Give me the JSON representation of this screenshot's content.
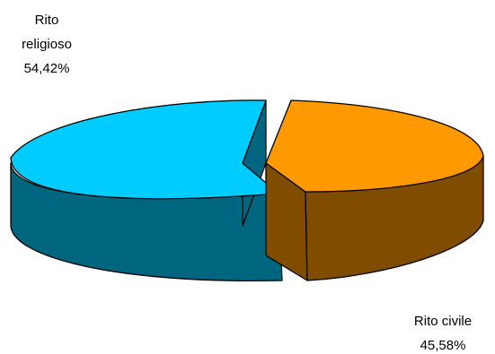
{
  "chart_data": {
    "type": "pie",
    "three_d": true,
    "exploded": true,
    "slices": [
      {
        "label_lines": [
          "Rito",
          "religioso"
        ],
        "value_label": "54,42%",
        "value": 54.42,
        "top_color": "#00ccff",
        "side_color": "#006680"
      },
      {
        "label_lines": [
          "Rito civile"
        ],
        "value_label": "45,58%",
        "value": 45.58,
        "top_color": "#ff9900",
        "side_color": "#804c00"
      }
    ]
  }
}
